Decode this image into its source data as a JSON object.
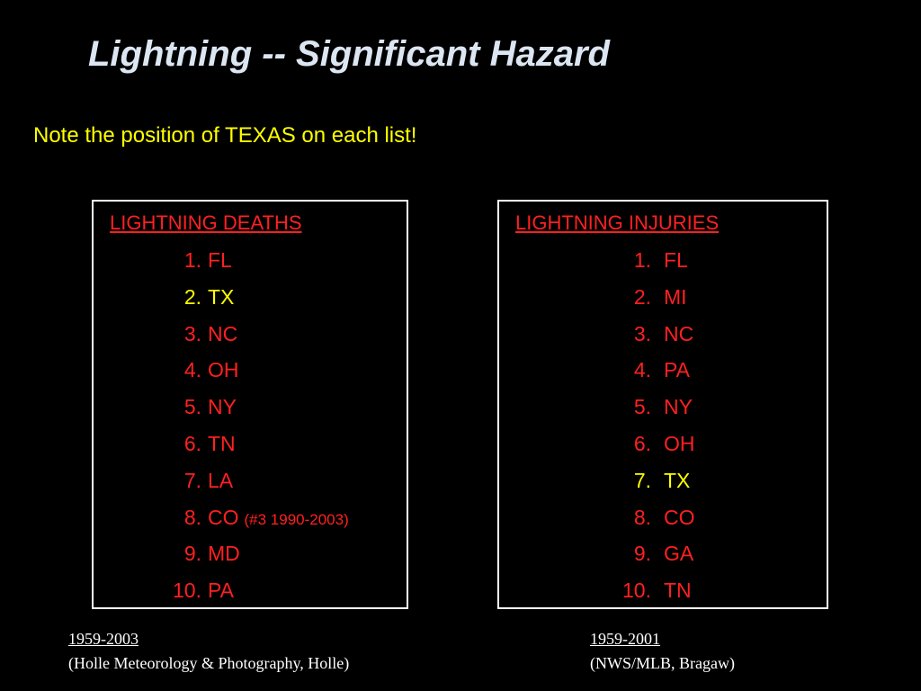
{
  "title": "Lightning -- Significant Hazard",
  "subtitle": "Note the position of TEXAS on each list!",
  "colors": {
    "background": "#000000",
    "title": "#dce6f2",
    "subtitle": "#ffff00",
    "list_text": "#ff2020",
    "highlight": "#ffff00",
    "border": "#ffffff"
  },
  "deaths": {
    "heading": "LIGHTNING DEATHS",
    "items": [
      {
        "rank": "1.",
        "state": "FL",
        "note": "",
        "highlight": false
      },
      {
        "rank": "2.",
        "state": "TX",
        "note": "",
        "highlight": true
      },
      {
        "rank": "3.",
        "state": "NC",
        "note": "",
        "highlight": false
      },
      {
        "rank": "4.",
        "state": "OH",
        "note": "",
        "highlight": false
      },
      {
        "rank": "5.",
        "state": "NY",
        "note": "",
        "highlight": false
      },
      {
        "rank": "6.",
        "state": "TN",
        "note": "",
        "highlight": false
      },
      {
        "rank": "7.",
        "state": "LA",
        "note": "",
        "highlight": false
      },
      {
        "rank": "8.",
        "state": "CO",
        "note": "(#3 1990-2003)",
        "highlight": false
      },
      {
        "rank": "9.",
        "state": "MD",
        "note": "",
        "highlight": false
      },
      {
        "rank": "10.",
        "state": "PA",
        "note": "",
        "highlight": false
      }
    ],
    "source_period": "1959-2003",
    "source_credit": "(Holle Meteorology & Photography, Holle)"
  },
  "injuries": {
    "heading": "LIGHTNING INJURIES",
    "items": [
      {
        "rank": "1.",
        "state": "FL",
        "note": "",
        "highlight": false
      },
      {
        "rank": "2.",
        "state": "MI",
        "note": "",
        "highlight": false
      },
      {
        "rank": "3.",
        "state": "NC",
        "note": "",
        "highlight": false
      },
      {
        "rank": "4.",
        "state": "PA",
        "note": "",
        "highlight": false
      },
      {
        "rank": "5.",
        "state": "NY",
        "note": "",
        "highlight": false
      },
      {
        "rank": "6.",
        "state": "OH",
        "note": "",
        "highlight": false
      },
      {
        "rank": "7.",
        "state": "TX",
        "note": "",
        "highlight": true
      },
      {
        "rank": "8.",
        "state": "CO",
        "note": "",
        "highlight": false
      },
      {
        "rank": "9.",
        "state": "GA",
        "note": "",
        "highlight": false
      },
      {
        "rank": "10.",
        "state": "TN",
        "note": "",
        "highlight": false
      }
    ],
    "source_period": "1959-2001",
    "source_credit": "(NWS/MLB, Bragaw)"
  }
}
